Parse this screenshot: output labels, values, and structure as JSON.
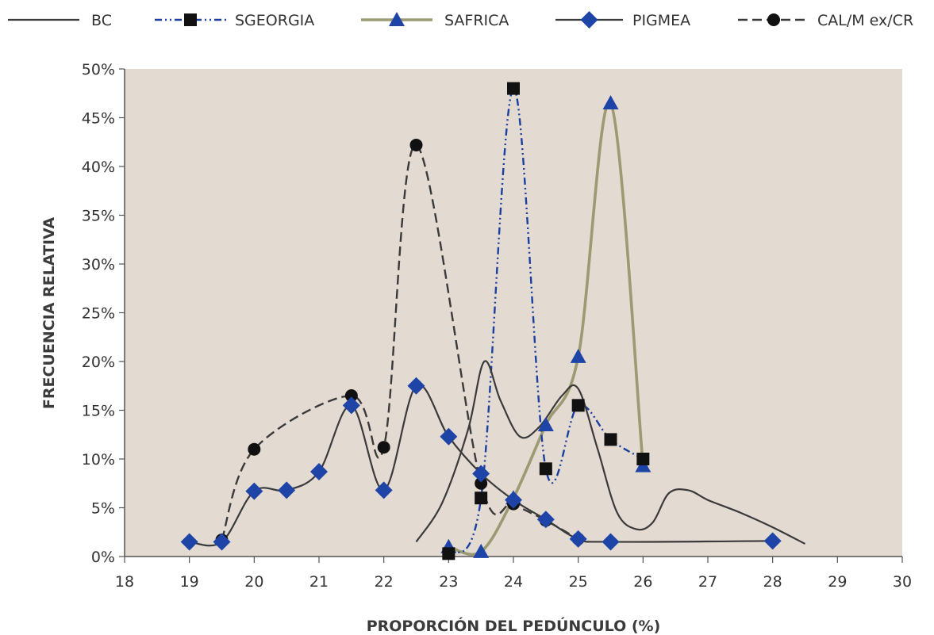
{
  "chart_data": {
    "type": "line",
    "xlabel": "PROPORCIÓN DEL PEDÚNCULO (%)",
    "ylabel": "FRECUENCIA RELATIVA",
    "xlim": [
      18,
      30
    ],
    "ylim": [
      0,
      50
    ],
    "x_ticks": [
      "18",
      "19",
      "20",
      "21",
      "22",
      "23",
      "24",
      "25",
      "26",
      "27",
      "28",
      "29",
      "30"
    ],
    "y_ticks": [
      "0%",
      "5%",
      "10%",
      "15%",
      "20%",
      "25%",
      "30%",
      "35%",
      "40%",
      "45%",
      "50%"
    ],
    "plot_background": "#e3dad2",
    "legend_position": "top",
    "series": [
      {
        "name": "BC",
        "color": "#3a3a3a",
        "marker": "none",
        "style": "solid",
        "points": [
          [
            22.5,
            1.5
          ],
          [
            22.9,
            5.5
          ],
          [
            23.3,
            13.0
          ],
          [
            23.55,
            20.0
          ],
          [
            23.8,
            16.0
          ],
          [
            24.1,
            12.3
          ],
          [
            24.4,
            13.3
          ],
          [
            24.75,
            16.5
          ],
          [
            25.0,
            17.2
          ],
          [
            25.3,
            11.0
          ],
          [
            25.6,
            4.5
          ],
          [
            25.9,
            2.8
          ],
          [
            26.15,
            3.5
          ],
          [
            26.4,
            6.5
          ],
          [
            26.7,
            6.8
          ],
          [
            27.0,
            5.8
          ],
          [
            27.5,
            4.5
          ],
          [
            28.0,
            3.0
          ],
          [
            28.5,
            1.3
          ]
        ]
      },
      {
        "name": "SGEORGIA",
        "color": "#1a3f9e",
        "marker": "square",
        "style": "dashdot",
        "points": [
          [
            23.0,
            0.3
          ],
          [
            23.5,
            6.0
          ],
          [
            24.0,
            48.0
          ],
          [
            24.5,
            9.0
          ],
          [
            25.0,
            15.5
          ],
          [
            25.5,
            12.0
          ],
          [
            26.0,
            10.0
          ]
        ]
      },
      {
        "name": "SAFRICA",
        "color": "#9c9a72",
        "marker": "triangle",
        "style": "solid",
        "points": [
          [
            23.0,
            1.0
          ],
          [
            23.5,
            0.5
          ],
          [
            24.0,
            6.0
          ],
          [
            24.5,
            13.5
          ],
          [
            25.0,
            20.5
          ],
          [
            25.5,
            46.5
          ],
          [
            26.0,
            9.3
          ]
        ]
      },
      {
        "name": "PIGMEA",
        "color": "#3a3a3a",
        "marker": "diamond",
        "style": "solid",
        "points": [
          [
            19.0,
            1.5
          ],
          [
            19.5,
            1.5
          ],
          [
            20.0,
            6.7
          ],
          [
            20.5,
            6.8
          ],
          [
            21.0,
            8.7
          ],
          [
            21.5,
            15.5
          ],
          [
            22.0,
            6.8
          ],
          [
            22.5,
            17.5
          ],
          [
            23.0,
            12.3
          ],
          [
            23.5,
            8.5
          ],
          [
            24.0,
            5.8
          ],
          [
            24.5,
            3.8
          ],
          [
            25.0,
            1.8
          ],
          [
            25.5,
            1.5
          ],
          [
            28.0,
            1.6
          ]
        ]
      },
      {
        "name": "CAL/M ex/CR",
        "color": "#3a3a3a",
        "marker": "circle",
        "style": "dashed",
        "points": [
          [
            19.5,
            1.7
          ],
          [
            20.0,
            11.0
          ],
          [
            21.5,
            16.5
          ],
          [
            22.0,
            11.2
          ],
          [
            22.5,
            42.2
          ],
          [
            23.5,
            7.5
          ],
          [
            24.0,
            5.4
          ],
          [
            24.5,
            3.7
          ],
          [
            25.0,
            1.8
          ]
        ]
      }
    ]
  }
}
